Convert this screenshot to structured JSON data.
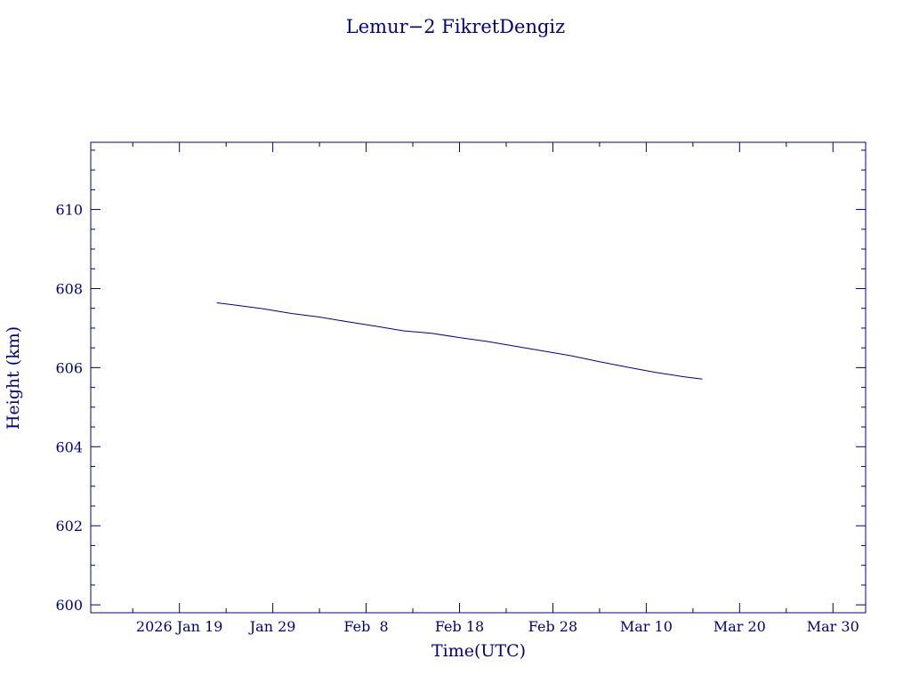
{
  "chart_data": {
    "type": "line",
    "title": "Lemur−2 FikretDengiz",
    "xlabel": "Time(UTC)",
    "ylabel": "Height (km)",
    "ylim": [
      599.8,
      611.7
    ],
    "xlim": [
      "2026-01-09T12:00",
      "2026-04-02T12:00"
    ],
    "x_ticks": [
      {
        "date": "2026-01-19",
        "label": "2026 Jan 19"
      },
      {
        "date": "2026-01-29",
        "label": "Jan 29"
      },
      {
        "date": "2026-02-08",
        "label": "Feb  8"
      },
      {
        "date": "2026-02-18",
        "label": "Feb 18"
      },
      {
        "date": "2026-02-28",
        "label": "Feb 28"
      },
      {
        "date": "2026-03-10",
        "label": "Mar 10"
      },
      {
        "date": "2026-03-20",
        "label": "Mar 20"
      },
      {
        "date": "2026-03-30",
        "label": "Mar 30"
      }
    ],
    "y_ticks": [
      600,
      602,
      604,
      606,
      608,
      610
    ],
    "series": [
      {
        "color": "#00008b",
        "points": [
          {
            "x": "2026-01-23",
            "y": 607.64
          },
          {
            "x": "2026-01-25",
            "y": 607.58
          },
          {
            "x": "2026-01-28",
            "y": 607.49
          },
          {
            "x": "2026-01-31",
            "y": 607.37
          },
          {
            "x": "2026-02-03",
            "y": 607.28
          },
          {
            "x": "2026-02-06",
            "y": 607.16
          },
          {
            "x": "2026-02-09",
            "y": 607.05
          },
          {
            "x": "2026-02-12",
            "y": 606.93
          },
          {
            "x": "2026-02-15",
            "y": 606.87
          },
          {
            "x": "2026-02-18",
            "y": 606.76
          },
          {
            "x": "2026-02-21",
            "y": 606.66
          },
          {
            "x": "2026-02-24",
            "y": 606.54
          },
          {
            "x": "2026-02-27",
            "y": 606.42
          },
          {
            "x": "2026-03-02",
            "y": 606.3
          },
          {
            "x": "2026-03-05",
            "y": 606.15
          },
          {
            "x": "2026-03-08",
            "y": 606.01
          },
          {
            "x": "2026-03-11",
            "y": 605.88
          },
          {
            "x": "2026-03-14",
            "y": 605.77
          },
          {
            "x": "2026-03-16",
            "y": 605.71
          }
        ]
      }
    ]
  }
}
